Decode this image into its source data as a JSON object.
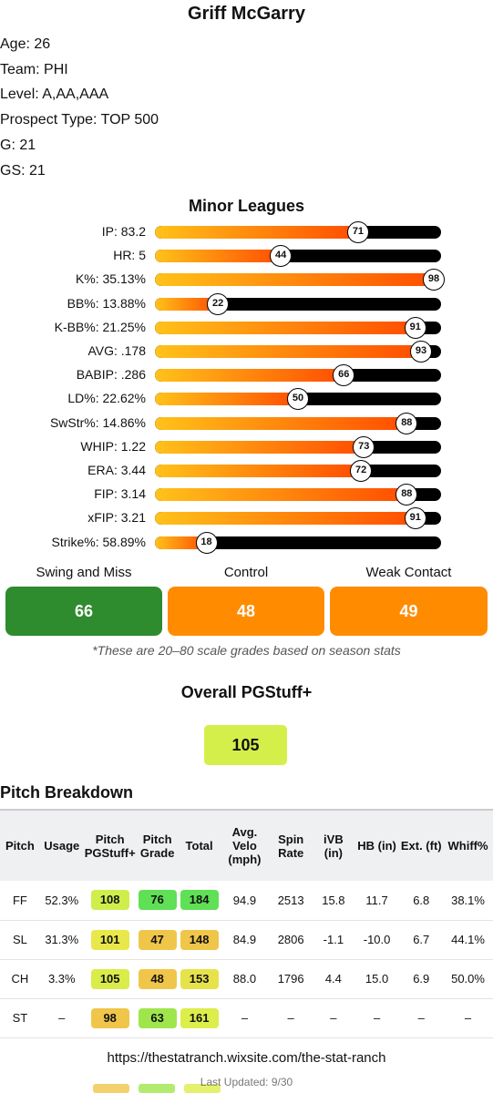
{
  "player": {
    "name": "Griff McGarry",
    "info": [
      "Age: 26",
      "Team: PHI",
      "Level: A,AA,AAA",
      "Prospect Type: TOP 500",
      "G: 21",
      "GS: 21"
    ]
  },
  "minor_leagues": {
    "title": "Minor Leagues",
    "stats": [
      {
        "label": "IP: 83.2",
        "pct": 71
      },
      {
        "label": "HR: 5",
        "pct": 44
      },
      {
        "label": "K%: 35.13%",
        "pct": 98
      },
      {
        "label": "BB%: 13.88%",
        "pct": 22
      },
      {
        "label": "K-BB%: 21.25%",
        "pct": 91
      },
      {
        "label": "AVG: .178",
        "pct": 93
      },
      {
        "label": "BABIP: .286",
        "pct": 66
      },
      {
        "label": "LD%: 22.62%",
        "pct": 50
      },
      {
        "label": "SwStr%: 14.86%",
        "pct": 88
      },
      {
        "label": "WHIP: 1.22",
        "pct": 73
      },
      {
        "label": "ERA: 3.44",
        "pct": 72
      },
      {
        "label": "FIP: 3.14",
        "pct": 88
      },
      {
        "label": "xFIP: 3.21",
        "pct": 91
      },
      {
        "label": "Strike%: 58.89%",
        "pct": 18
      }
    ]
  },
  "grades": [
    {
      "label": "Swing and Miss",
      "value": "66",
      "color": "#2e8b2e"
    },
    {
      "label": "Control",
      "value": "48",
      "color": "#ff8c00"
    },
    {
      "label": "Weak Contact",
      "value": "49",
      "color": "#ff8c00"
    }
  ],
  "footnote": "*These are 20–80 scale grades based on season stats",
  "overall": {
    "title": "Overall PGStuff+",
    "value": "105"
  },
  "pitch_breakdown": {
    "title": "Pitch Breakdown",
    "headers": [
      "Pitch",
      "Usage",
      "Pitch PGStuff+",
      "Pitch Grade",
      "Total",
      "Avg. Velo (mph)",
      "Spin Rate",
      "iVB (in)",
      "HB (in)",
      "Ext. (ft)",
      "Whiff%"
    ],
    "rows": [
      {
        "pitch": "FF",
        "usage": "52.3%",
        "stuff": "108",
        "stuff_color": "#cfee4c",
        "grade": "76",
        "grade_color": "#5fe055",
        "total": "184",
        "total_color": "#5fe055",
        "velo": "94.9",
        "spin": "2513",
        "ivb": "15.8",
        "hb": "11.7",
        "ext": "6.8",
        "whiff": "38.1%"
      },
      {
        "pitch": "SL",
        "usage": "31.3%",
        "stuff": "101",
        "stuff_color": "#e8e84a",
        "grade": "47",
        "grade_color": "#f0c64a",
        "total": "148",
        "total_color": "#f0c64a",
        "velo": "84.9",
        "spin": "2806",
        "ivb": "-1.1",
        "hb": "-10.0",
        "ext": "6.7",
        "whiff": "44.1%"
      },
      {
        "pitch": "CH",
        "usage": "3.3%",
        "stuff": "105",
        "stuff_color": "#d9ec4a",
        "grade": "48",
        "grade_color": "#f0c64a",
        "total": "153",
        "total_color": "#e6e34a",
        "velo": "88.0",
        "spin": "1796",
        "ivb": "4.4",
        "hb": "15.0",
        "ext": "6.9",
        "whiff": "50.0%"
      },
      {
        "pitch": "ST",
        "usage": "–",
        "stuff": "98",
        "stuff_color": "#f0c64a",
        "grade": "63",
        "grade_color": "#9fe64c",
        "total": "161",
        "total_color": "#dcee4a",
        "velo": "–",
        "spin": "–",
        "ivb": "–",
        "hb": "–",
        "ext": "–",
        "whiff": "–"
      }
    ]
  },
  "footer": {
    "url": "https://thestatranch.wixsite.com/the-stat-ranch",
    "updated": "Last Updated: 9/30"
  }
}
